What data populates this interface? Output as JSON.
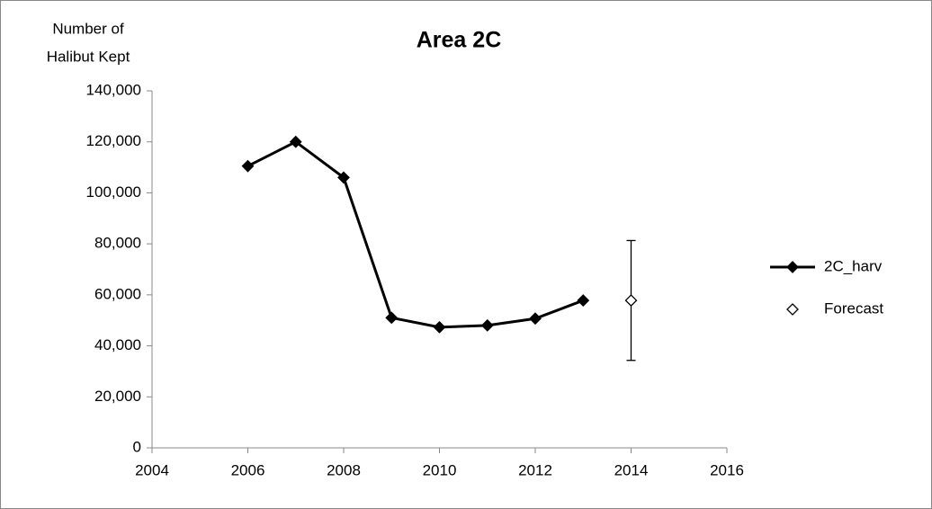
{
  "chart_data": {
    "type": "line",
    "title": "Area 2C",
    "ylabel": [
      "Number of",
      "Halibut Kept"
    ],
    "xlim": [
      2004,
      2016
    ],
    "xticks": [
      2004,
      2006,
      2008,
      2010,
      2012,
      2014,
      2016
    ],
    "ylim": [
      0,
      140000
    ],
    "yticks": [
      0,
      {
        "value": 20000,
        "label": "20,000"
      },
      {
        "value": 40000,
        "label": "40,000"
      },
      {
        "value": 60000,
        "label": "60,000"
      },
      {
        "value": 80000,
        "label": "80,000"
      },
      {
        "value": 100000,
        "label": "100,000"
      },
      {
        "value": 120000,
        "label": "120,000"
      },
      {
        "value": 140000,
        "label": "140,000"
      }
    ],
    "grid": false,
    "legend": "right",
    "series": [
      {
        "name": "2C_harv",
        "color": "#000000",
        "marker": "filled-diamond",
        "x": [
          2006,
          2007,
          2008,
          2009,
          2010,
          2011,
          2012,
          2013
        ],
        "values": [
          110500,
          120000,
          106000,
          51000,
          47300,
          48000,
          50700,
          57800
        ]
      },
      {
        "name": "Forecast",
        "color": "#000000",
        "marker": "open-diamond",
        "x": [
          2014
        ],
        "values": [
          57800
        ],
        "errors": [
          23500
        ]
      }
    ]
  }
}
